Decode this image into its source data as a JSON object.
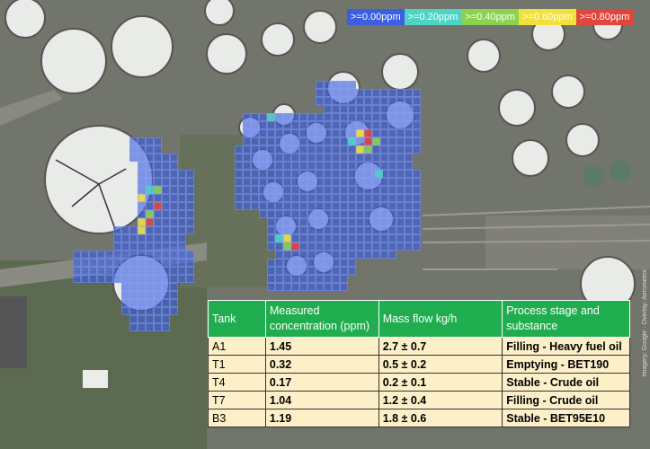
{
  "legend": [
    {
      "label": ">=0.00ppm",
      "color": "#3b5fe0"
    },
    {
      "label": ">=0.20ppm",
      "color": "#4fd3c4"
    },
    {
      "label": ">=0.40ppm",
      "color": "#8ad24f"
    },
    {
      "label": ">=0.60ppm",
      "color": "#f2e13a"
    },
    {
      "label": ">=0.80ppm",
      "color": "#e2453c"
    }
  ],
  "table": {
    "headers": [
      "Tank",
      "Measured concentration (ppm)",
      "Mass flow kg/h",
      "Process stage and substance"
    ],
    "rows": [
      {
        "tank": "A1",
        "concentration": "1.45",
        "mass_flow": "2.7 ± 0.7",
        "process": "Filling - Heavy fuel oil"
      },
      {
        "tank": "T1",
        "concentration": "0.32",
        "mass_flow": "0.5 ± 0.2",
        "process": "Emptying - BET190"
      },
      {
        "tank": "T4",
        "concentration": "0.17",
        "mass_flow": "0.2 ± 0.1",
        "process": "Stable - Crude oil"
      },
      {
        "tank": "T7",
        "concentration": "1.04",
        "mass_flow": "1.2 ± 0.4",
        "process": "Filling - Crude oil"
      },
      {
        "tank": "B3",
        "concentration": "1.19",
        "mass_flow": "1.8 ± 0.6",
        "process": "Stable - BET95E10"
      }
    ]
  },
  "watermark": "Imagery: Google · Overlay: Aerometrix"
}
